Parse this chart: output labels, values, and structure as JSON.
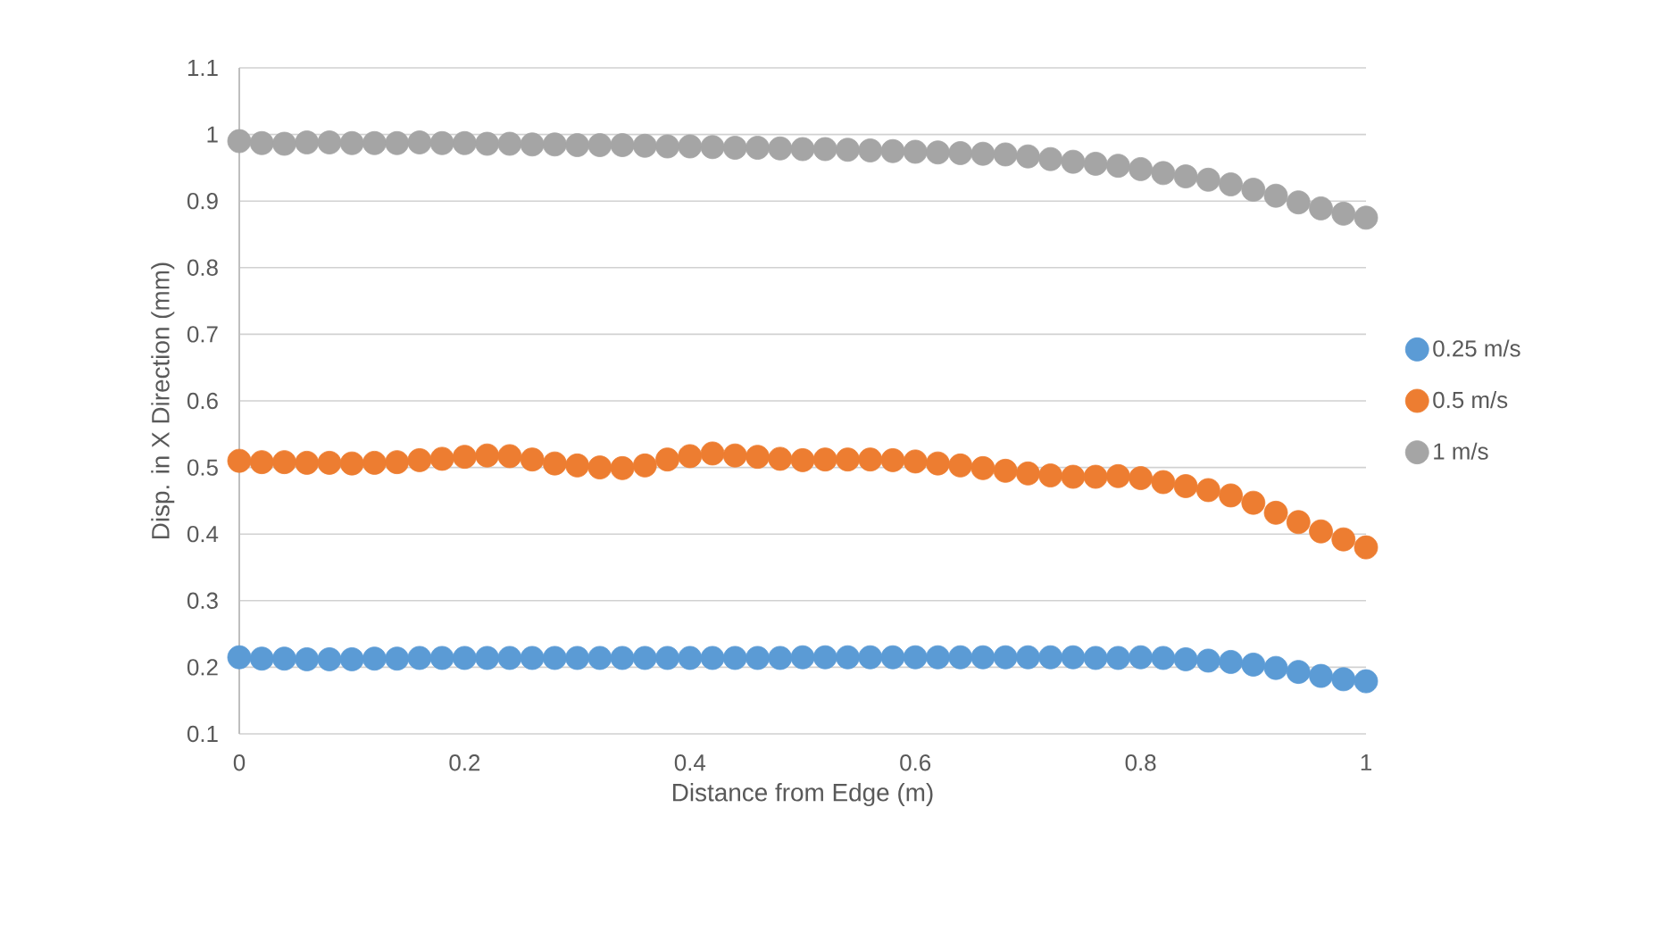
{
  "chart_data": {
    "type": "scatter",
    "xlabel": "Distance from Edge (m)",
    "ylabel": "Disp. in X Direction (mm)",
    "xlim": [
      0,
      1
    ],
    "xticks": [
      0,
      0.2,
      0.4,
      0.6,
      0.8,
      1
    ],
    "ylim": [
      0.1,
      1.1
    ],
    "yticks": [
      0.1,
      0.2,
      0.3,
      0.4,
      0.5,
      0.6,
      0.7,
      0.8,
      0.9,
      1,
      1.1
    ],
    "grid": "y",
    "legend": "right",
    "marker": "circle",
    "x": [
      0,
      0.02,
      0.04,
      0.06,
      0.08,
      0.1,
      0.12,
      0.14,
      0.16,
      0.18,
      0.2,
      0.22,
      0.24,
      0.26,
      0.28,
      0.3,
      0.32,
      0.34,
      0.36,
      0.38,
      0.4,
      0.42,
      0.44,
      0.46,
      0.48,
      0.5,
      0.52,
      0.54,
      0.56,
      0.58,
      0.6,
      0.62,
      0.64,
      0.66,
      0.68,
      0.7,
      0.72,
      0.74,
      0.76,
      0.78,
      0.8,
      0.82,
      0.84,
      0.86,
      0.88,
      0.9,
      0.92,
      0.94,
      0.96,
      0.98,
      1
    ],
    "series": [
      {
        "name": "0.25 m/s",
        "color": "#5b9bd5",
        "values": [
          0.215,
          0.213,
          0.213,
          0.212,
          0.212,
          0.212,
          0.213,
          0.213,
          0.214,
          0.214,
          0.214,
          0.214,
          0.214,
          0.214,
          0.214,
          0.214,
          0.214,
          0.214,
          0.214,
          0.214,
          0.214,
          0.214,
          0.214,
          0.214,
          0.214,
          0.215,
          0.215,
          0.215,
          0.215,
          0.215,
          0.215,
          0.215,
          0.215,
          0.215,
          0.215,
          0.215,
          0.215,
          0.215,
          0.214,
          0.214,
          0.215,
          0.214,
          0.212,
          0.21,
          0.208,
          0.204,
          0.199,
          0.193,
          0.187,
          0.182,
          0.179
        ]
      },
      {
        "name": "0.5 m/s",
        "color": "#ed7d31",
        "values": [
          0.51,
          0.508,
          0.508,
          0.507,
          0.507,
          0.506,
          0.507,
          0.508,
          0.511,
          0.513,
          0.516,
          0.518,
          0.517,
          0.512,
          0.506,
          0.503,
          0.5,
          0.499,
          0.503,
          0.512,
          0.517,
          0.521,
          0.518,
          0.516,
          0.513,
          0.511,
          0.512,
          0.512,
          0.512,
          0.511,
          0.509,
          0.506,
          0.503,
          0.499,
          0.495,
          0.491,
          0.488,
          0.486,
          0.486,
          0.487,
          0.484,
          0.478,
          0.472,
          0.466,
          0.458,
          0.447,
          0.432,
          0.418,
          0.404,
          0.392,
          0.38
        ]
      },
      {
        "name": "1 m/s",
        "color": "#a5a5a5",
        "values": [
          0.99,
          0.987,
          0.986,
          0.988,
          0.988,
          0.987,
          0.987,
          0.987,
          0.988,
          0.987,
          0.987,
          0.986,
          0.986,
          0.985,
          0.985,
          0.984,
          0.984,
          0.984,
          0.983,
          0.982,
          0.982,
          0.981,
          0.98,
          0.98,
          0.979,
          0.978,
          0.978,
          0.977,
          0.976,
          0.975,
          0.974,
          0.973,
          0.972,
          0.971,
          0.97,
          0.967,
          0.963,
          0.959,
          0.956,
          0.953,
          0.948,
          0.942,
          0.937,
          0.932,
          0.925,
          0.917,
          0.908,
          0.898,
          0.889,
          0.881,
          0.875
        ]
      }
    ]
  }
}
